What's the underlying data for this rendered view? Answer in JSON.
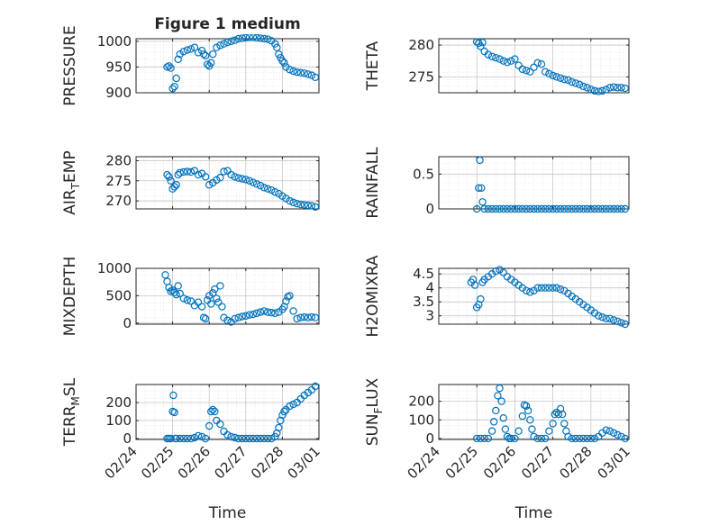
{
  "figure": {
    "title": "Figure 1 medium",
    "marker_color": "#0072bd",
    "grid_color": "#dcdcdc",
    "axis_color": "#262626"
  },
  "chart_data": [
    {
      "id": "pressure",
      "type": "scatter",
      "title": "Figure 1 medium",
      "ylabel": "PRESSURE",
      "xlabel": "",
      "x_ticklabels": [],
      "xlim_days": [
        24,
        29
      ],
      "ylim": [
        900,
        1005
      ],
      "yticks": [
        "900",
        "950",
        "1000"
      ],
      "grid": true,
      "x": [
        24.85,
        24.9,
        24.95,
        25.0,
        25.05,
        25.1,
        25.15,
        25.2,
        25.3,
        25.4,
        25.5,
        25.6,
        25.7,
        25.8,
        25.85,
        25.9,
        25.95,
        26.0,
        26.05,
        26.1,
        26.2,
        26.3,
        26.4,
        26.5,
        26.6,
        26.7,
        26.8,
        26.9,
        27.0,
        27.1,
        27.2,
        27.3,
        27.4,
        27.5,
        27.6,
        27.7,
        27.8,
        27.85,
        27.9,
        27.95,
        28.0,
        28.05,
        28.1,
        28.2,
        28.3,
        28.4,
        28.5,
        28.6,
        28.7,
        28.8,
        28.9
      ],
      "y": [
        950,
        952,
        948,
        908,
        912,
        928,
        965,
        975,
        980,
        983,
        985,
        988,
        978,
        982,
        975,
        972,
        955,
        952,
        958,
        975,
        988,
        992,
        995,
        998,
        1000,
        1002,
        1005,
        1006,
        1007,
        1008,
        1008,
        1007,
        1006,
        1005,
        1004,
        1001,
        995,
        988,
        975,
        968,
        962,
        958,
        950,
        945,
        942,
        940,
        939,
        938,
        936,
        934,
        930
      ]
    },
    {
      "id": "theta",
      "type": "scatter",
      "ylabel": "THETA",
      "xlabel": "",
      "x_ticklabels": [],
      "xlim_days": [
        24,
        29
      ],
      "ylim": [
        272.5,
        281
      ],
      "yticks": [
        "275",
        "280"
      ],
      "grid": true,
      "x": [
        25.0,
        25.05,
        25.1,
        25.15,
        25.2,
        25.3,
        25.4,
        25.5,
        25.6,
        25.7,
        25.8,
        25.9,
        26.0,
        26.1,
        26.2,
        26.3,
        26.4,
        26.5,
        26.6,
        26.7,
        26.8,
        26.9,
        27.0,
        27.1,
        27.2,
        27.3,
        27.4,
        27.5,
        27.6,
        27.7,
        27.8,
        27.9,
        28.0,
        28.1,
        28.2,
        28.3,
        28.4,
        28.5,
        28.6,
        28.7,
        28.8,
        28.9
      ],
      "y": [
        280.5,
        280.3,
        279.8,
        280.4,
        279.0,
        278.5,
        278.2,
        278.0,
        277.8,
        277.5,
        277.3,
        277.5,
        277.8,
        276.8,
        276.2,
        276.0,
        275.8,
        276.5,
        277.2,
        277.0,
        275.8,
        275.5,
        275.2,
        275.0,
        274.8,
        274.6,
        274.5,
        274.2,
        274.0,
        273.8,
        273.5,
        273.3,
        273.0,
        272.8,
        272.7,
        272.8,
        273.0,
        273.3,
        273.4,
        273.3,
        273.3,
        273.2
      ]
    },
    {
      "id": "air_temp",
      "type": "scatter",
      "ylabel": "AIR_TEMP",
      "ylabel_display": {
        "main": "AIR",
        "sub": "T",
        "rest": "EMP"
      },
      "xlabel": "",
      "x_ticklabels": [],
      "xlim_days": [
        24,
        29
      ],
      "ylim": [
        268,
        281
      ],
      "yticks": [
        "270",
        "275",
        "280"
      ],
      "grid": true,
      "x": [
        24.85,
        24.9,
        24.95,
        25.0,
        25.05,
        25.1,
        25.15,
        25.2,
        25.3,
        25.4,
        25.5,
        25.6,
        25.7,
        25.8,
        25.9,
        26.0,
        26.1,
        26.2,
        26.3,
        26.4,
        26.5,
        26.6,
        26.7,
        26.8,
        26.9,
        27.0,
        27.1,
        27.2,
        27.3,
        27.4,
        27.5,
        27.6,
        27.7,
        27.8,
        27.9,
        28.0,
        28.1,
        28.2,
        28.3,
        28.4,
        28.5,
        28.6,
        28.7,
        28.8,
        28.9
      ],
      "y": [
        276.5,
        276.0,
        275.0,
        273.0,
        273.5,
        274.0,
        276.5,
        277.0,
        277.2,
        277.3,
        277.2,
        277.5,
        276.5,
        276.8,
        276.0,
        274.0,
        274.5,
        275.2,
        275.8,
        277.3,
        277.5,
        276.5,
        276.0,
        275.7,
        275.5,
        275.3,
        275.0,
        274.6,
        274.2,
        273.8,
        273.3,
        273.0,
        272.7,
        272.2,
        271.8,
        271.2,
        270.6,
        270.0,
        269.6,
        269.3,
        269.1,
        269.0,
        268.9,
        268.8,
        268.5
      ]
    },
    {
      "id": "rainfall",
      "type": "scatter",
      "ylabel": "RAINFALL",
      "xlabel": "",
      "x_ticklabels": [],
      "xlim_days": [
        24,
        29
      ],
      "ylim": [
        0,
        0.75
      ],
      "yticks": [
        "0",
        "0.5"
      ],
      "grid": true,
      "x": [
        25.0,
        25.05,
        25.08,
        25.12,
        25.15,
        25.2,
        25.3,
        25.4,
        25.5,
        25.6,
        25.7,
        25.8,
        25.9,
        26.0,
        26.1,
        26.2,
        26.3,
        26.4,
        26.5,
        26.6,
        26.7,
        26.8,
        26.9,
        27.0,
        27.1,
        27.2,
        27.3,
        27.4,
        27.5,
        27.6,
        27.7,
        27.8,
        27.9,
        28.0,
        28.1,
        28.2,
        28.3,
        28.4,
        28.5,
        28.6,
        28.7,
        28.8,
        28.9
      ],
      "y": [
        0,
        0.3,
        0.7,
        0.3,
        0.1,
        0,
        0,
        0,
        0,
        0,
        0,
        0,
        0,
        0,
        0,
        0,
        0,
        0,
        0,
        0,
        0,
        0,
        0,
        0,
        0,
        0,
        0,
        0,
        0,
        0,
        0,
        0,
        0,
        0,
        0,
        0,
        0,
        0,
        0,
        0,
        0,
        0,
        0
      ]
    },
    {
      "id": "mixdepth",
      "type": "scatter",
      "ylabel": "MIXDEPTH",
      "xlabel": "",
      "x_ticklabels": [],
      "xlim_days": [
        24,
        29
      ],
      "ylim": [
        -20,
        1000
      ],
      "yticks": [
        "0",
        "500",
        "1000"
      ],
      "grid": true,
      "x": [
        24.8,
        24.85,
        24.9,
        24.95,
        25.0,
        25.05,
        25.1,
        25.15,
        25.2,
        25.3,
        25.4,
        25.5,
        25.6,
        25.7,
        25.8,
        25.85,
        25.9,
        25.95,
        26.0,
        26.05,
        26.1,
        26.15,
        26.2,
        26.25,
        26.3,
        26.35,
        26.4,
        26.5,
        26.6,
        26.7,
        26.8,
        26.9,
        27.0,
        27.1,
        27.2,
        27.3,
        27.4,
        27.5,
        27.6,
        27.7,
        27.8,
        27.9,
        28.0,
        28.05,
        28.1,
        28.15,
        28.2,
        28.3,
        28.4,
        28.5,
        28.6,
        28.7,
        28.8,
        28.9
      ],
      "y": [
        880,
        760,
        650,
        580,
        600,
        560,
        520,
        680,
        540,
        450,
        420,
        400,
        320,
        380,
        300,
        100,
        80,
        420,
        500,
        350,
        550,
        620,
        450,
        380,
        680,
        300,
        100,
        50,
        20,
        80,
        100,
        120,
        130,
        150,
        160,
        180,
        200,
        220,
        200,
        190,
        180,
        200,
        250,
        300,
        400,
        480,
        500,
        220,
        80,
        100,
        110,
        100,
        110,
        100
      ]
    },
    {
      "id": "h2omixra",
      "type": "scatter",
      "ylabel": "H2OMIXRA",
      "xlabel": "",
      "x_ticklabels": [],
      "xlim_days": [
        24,
        29
      ],
      "ylim": [
        2.7,
        4.7
      ],
      "yticks": [
        "3",
        "3.5",
        "4",
        "4.5"
      ],
      "grid": true,
      "x": [
        24.85,
        24.9,
        24.95,
        25.0,
        25.05,
        25.1,
        25.15,
        25.2,
        25.3,
        25.4,
        25.5,
        25.6,
        25.7,
        25.8,
        25.9,
        26.0,
        26.1,
        26.2,
        26.3,
        26.4,
        26.5,
        26.6,
        26.7,
        26.8,
        26.9,
        27.0,
        27.1,
        27.2,
        27.3,
        27.4,
        27.5,
        27.6,
        27.7,
        27.8,
        27.9,
        28.0,
        28.1,
        28.2,
        28.3,
        28.4,
        28.5,
        28.6,
        28.7,
        28.8,
        28.9
      ],
      "y": [
        4.2,
        4.3,
        4.1,
        3.3,
        3.4,
        3.6,
        4.2,
        4.3,
        4.4,
        4.5,
        4.6,
        4.65,
        4.55,
        4.4,
        4.3,
        4.2,
        4.1,
        4.0,
        3.9,
        3.85,
        3.9,
        4.0,
        4.0,
        4.0,
        4.0,
        4.0,
        4.0,
        3.95,
        3.9,
        3.8,
        3.7,
        3.6,
        3.5,
        3.4,
        3.3,
        3.2,
        3.1,
        3.0,
        2.95,
        2.9,
        2.9,
        2.85,
        2.8,
        2.75,
        2.7
      ]
    },
    {
      "id": "terr_msl",
      "type": "scatter",
      "ylabel": "TERR_MSL",
      "ylabel_display": {
        "main": "TERR",
        "sub": "M",
        "rest": "SL"
      },
      "xlabel": "Time",
      "x_ticklabels": [
        "02/24",
        "02/25",
        "02/26",
        "02/27",
        "02/28",
        "03/01"
      ],
      "xlim_days": [
        24,
        29
      ],
      "ylim": [
        -5,
        300
      ],
      "yticks": [
        "0",
        "100",
        "200"
      ],
      "grid": true,
      "x": [
        24.85,
        24.9,
        24.95,
        25.0,
        25.02,
        25.05,
        25.08,
        25.1,
        25.2,
        25.3,
        25.4,
        25.5,
        25.6,
        25.7,
        25.8,
        25.9,
        26.0,
        26.05,
        26.1,
        26.15,
        26.2,
        26.3,
        26.4,
        26.5,
        26.6,
        26.7,
        26.8,
        26.9,
        27.0,
        27.1,
        27.2,
        27.3,
        27.4,
        27.5,
        27.6,
        27.7,
        27.8,
        27.85,
        27.9,
        27.95,
        28.0,
        28.05,
        28.1,
        28.2,
        28.3,
        28.4,
        28.5,
        28.6,
        28.7,
        28.8,
        28.9
      ],
      "y": [
        0,
        0,
        0,
        150,
        240,
        145,
        0,
        0,
        0,
        0,
        0,
        0,
        5,
        15,
        10,
        0,
        70,
        150,
        160,
        150,
        100,
        80,
        40,
        20,
        10,
        5,
        0,
        0,
        0,
        0,
        0,
        0,
        0,
        0,
        0,
        0,
        10,
        30,
        60,
        100,
        130,
        150,
        160,
        180,
        190,
        200,
        220,
        240,
        255,
        270,
        290
      ]
    },
    {
      "id": "sun_flux",
      "type": "scatter",
      "ylabel": "SUN_FLUX",
      "ylabel_display": {
        "main": "SUN",
        "sub": "F",
        "rest": "LUX"
      },
      "xlabel": "Time",
      "x_ticklabels": [
        "02/24",
        "02/25",
        "02/26",
        "02/27",
        "02/28",
        "03/01"
      ],
      "xlim_days": [
        24,
        29
      ],
      "ylim": [
        -5,
        290
      ],
      "yticks": [
        "0",
        "100",
        "200"
      ],
      "grid": true,
      "x": [
        25.0,
        25.1,
        25.2,
        25.3,
        25.4,
        25.45,
        25.5,
        25.55,
        25.6,
        25.65,
        25.7,
        25.75,
        25.8,
        25.85,
        25.9,
        26.0,
        26.1,
        26.2,
        26.25,
        26.3,
        26.35,
        26.4,
        26.45,
        26.5,
        26.6,
        26.7,
        26.8,
        26.9,
        27.0,
        27.05,
        27.1,
        27.15,
        27.2,
        27.25,
        27.3,
        27.35,
        27.4,
        27.5,
        27.6,
        27.7,
        27.8,
        27.9,
        28.0,
        28.1,
        28.2,
        28.3,
        28.4,
        28.5,
        28.6,
        28.7,
        28.8,
        28.9
      ],
      "y": [
        0,
        0,
        0,
        0,
        40,
        90,
        150,
        230,
        270,
        200,
        110,
        50,
        10,
        0,
        0,
        0,
        40,
        120,
        180,
        175,
        150,
        100,
        50,
        10,
        0,
        0,
        0,
        40,
        80,
        130,
        140,
        130,
        160,
        130,
        80,
        40,
        10,
        0,
        0,
        0,
        0,
        0,
        0,
        0,
        10,
        30,
        45,
        40,
        30,
        20,
        10,
        0
      ]
    }
  ]
}
